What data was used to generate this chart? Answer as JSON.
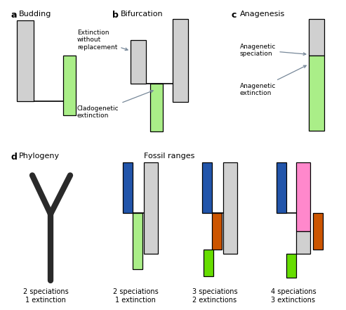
{
  "title_a": "Budding",
  "title_b": "Bifurcation",
  "title_c": "Anagenesis",
  "title_d": "Phylogeny",
  "fossil_label": "Fossil ranges",
  "label_a": "a",
  "label_b": "b",
  "label_c": "c",
  "label_d": "d",
  "color_light_gray": "#d0d0d0",
  "color_green": "#aaee88",
  "color_dark": "#2a2a2a",
  "color_blue": "#2255aa",
  "color_orange": "#cc5500",
  "color_pink": "#ff88cc",
  "color_bright_green": "#66dd00",
  "bg": "#ffffff",
  "arrow_color": "#778899",
  "text_extinction_without": "Extinction\nwithout\nreplacement",
  "text_cladogenetic": "Cladogenetic\nextinction",
  "text_anagenetic_spec": "Anagenetic\nspeciation",
  "text_anagenetic_ext": "Anagenetic\nextinction",
  "caption_d1": "2 speciations\n1 extinction",
  "caption_d2": "2 speciations\n1 extinction",
  "caption_d3": "3 speciations\n2 extinctions",
  "caption_d4": "4 speciations\n3 extinctions"
}
